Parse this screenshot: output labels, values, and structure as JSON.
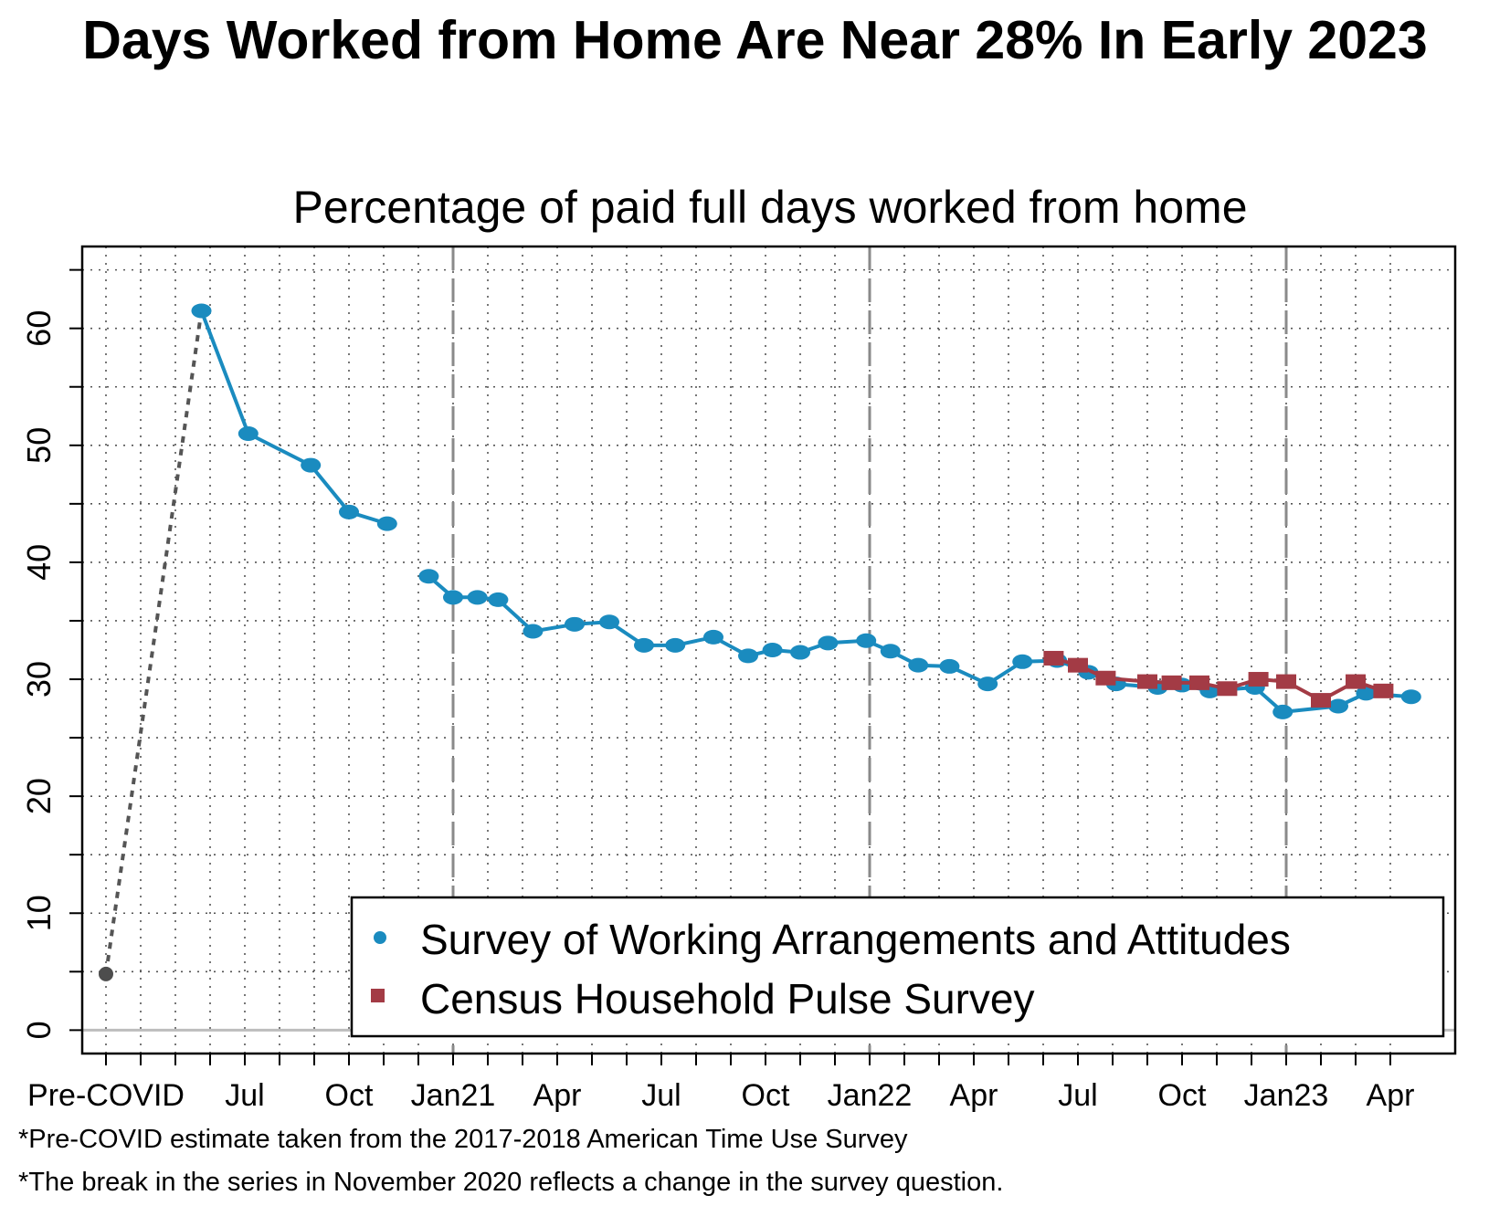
{
  "title": "Days Worked from Home Are Near 28% In Early 2023",
  "footnotes": [
    "*Pre-COVID estimate taken from the 2017-2018 American Time Use Survey",
    "*The break in the series in November 2020 reflects a change in the survey question."
  ],
  "chart_data": {
    "type": "line",
    "title": "Percentage of paid full days worked from home",
    "xlabel": "",
    "ylabel": "",
    "ylim": [
      -2,
      67
    ],
    "y_ticks": [
      0,
      10,
      20,
      30,
      40,
      50,
      60
    ],
    "grid": true,
    "legend_position": "bottom-right",
    "x_tick_labels": [
      {
        "pos": 0,
        "label": "Pre-COVID"
      },
      {
        "pos": 4,
        "label": "Jul"
      },
      {
        "pos": 7,
        "label": "Oct"
      },
      {
        "pos": 10,
        "label": "Jan21"
      },
      {
        "pos": 13,
        "label": "Apr"
      },
      {
        "pos": 16,
        "label": "Jul"
      },
      {
        "pos": 19,
        "label": "Oct"
      },
      {
        "pos": 22,
        "label": "Jan22"
      },
      {
        "pos": 25,
        "label": "Apr"
      },
      {
        "pos": 28,
        "label": "Jul"
      },
      {
        "pos": 31,
        "label": "Oct"
      },
      {
        "pos": 34,
        "label": "Jan23"
      },
      {
        "pos": 37,
        "label": "Apr"
      }
    ],
    "dashed_vlines": [
      10,
      22,
      34
    ],
    "precovid": {
      "x": 0,
      "y": 4.8
    },
    "series": [
      {
        "name": "Survey of Working Arrangements and Attitudes",
        "color": "#1a8bbf",
        "marker": "circle",
        "segments": [
          [
            [
              2.75,
              61.5
            ],
            [
              4.1,
              51.0
            ],
            [
              5.9,
              48.3
            ],
            [
              7.0,
              44.3
            ],
            [
              8.1,
              43.3
            ]
          ],
          [
            [
              9.3,
              38.8
            ],
            [
              10.0,
              37.0
            ],
            [
              10.7,
              37.0
            ],
            [
              11.3,
              36.8
            ],
            [
              12.3,
              34.1
            ],
            [
              13.5,
              34.7
            ],
            [
              14.5,
              34.9
            ],
            [
              15.5,
              32.9
            ],
            [
              16.4,
              32.9
            ],
            [
              17.5,
              33.6
            ],
            [
              18.5,
              32.0
            ],
            [
              19.2,
              32.5
            ],
            [
              20.0,
              32.3
            ],
            [
              20.8,
              33.1
            ],
            [
              21.9,
              33.3
            ],
            [
              22.6,
              32.4
            ],
            [
              23.4,
              31.2
            ],
            [
              24.3,
              31.1
            ],
            [
              25.4,
              29.6
            ],
            [
              26.4,
              31.5
            ],
            [
              27.4,
              31.6
            ],
            [
              28.3,
              30.6
            ],
            [
              29.1,
              29.6
            ],
            [
              30.3,
              29.3
            ],
            [
              31.0,
              29.5
            ],
            [
              31.8,
              29.0
            ],
            [
              33.1,
              29.3
            ],
            [
              33.9,
              27.2
            ],
            [
              35.5,
              27.7
            ],
            [
              36.3,
              28.8
            ],
            [
              37.6,
              28.5
            ]
          ]
        ]
      },
      {
        "name": "Census Household Pulse Survey",
        "color": "#a33b45",
        "marker": "square",
        "segments": [
          [
            [
              27.3,
              31.8
            ],
            [
              28.0,
              31.2
            ],
            [
              28.8,
              30.1
            ],
            [
              30.0,
              29.8
            ],
            [
              30.7,
              29.7
            ],
            [
              31.5,
              29.7
            ],
            [
              32.3,
              29.2
            ],
            [
              33.2,
              30.0
            ],
            [
              34.0,
              29.8
            ],
            [
              35.0,
              28.2
            ],
            [
              36.0,
              29.8
            ],
            [
              36.8,
              29.0
            ]
          ]
        ]
      }
    ]
  }
}
